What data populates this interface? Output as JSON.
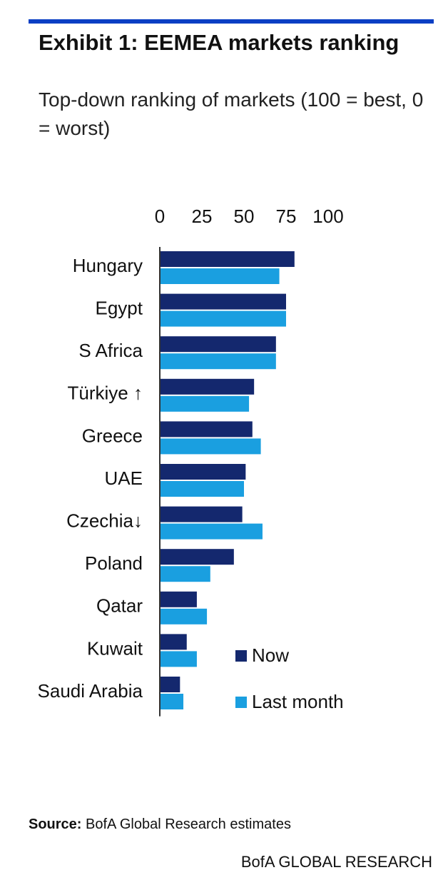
{
  "chart_data": {
    "type": "barh",
    "title": "Exhibit 1: EEMEA markets ranking",
    "subtitle": "Top-down ranking of markets (100 = best, 0 = worst)",
    "categories": [
      "Hungary",
      "Egypt",
      "S Africa",
      "Türkiye ↑",
      "Greece",
      "UAE",
      "Czechia↓",
      "Poland",
      "Qatar",
      "Kuwait",
      "Saudi Arabia"
    ],
    "series": [
      {
        "name": "Now",
        "color": "#14286e",
        "values": [
          80,
          75,
          69,
          56,
          55,
          51,
          49,
          44,
          22,
          16,
          12
        ]
      },
      {
        "name": "Last month",
        "color": "#1a9fe0",
        "values": [
          71,
          75,
          69,
          53,
          60,
          50,
          61,
          30,
          28,
          22,
          14
        ]
      }
    ],
    "xlim": [
      0,
      100
    ],
    "xticks": [
      0,
      25,
      50,
      75,
      100
    ],
    "legend": "lower right",
    "source_label": "Source:",
    "source_text": "BofA Global Research estimates",
    "footer": "BofA GLOBAL RESEARCH"
  }
}
